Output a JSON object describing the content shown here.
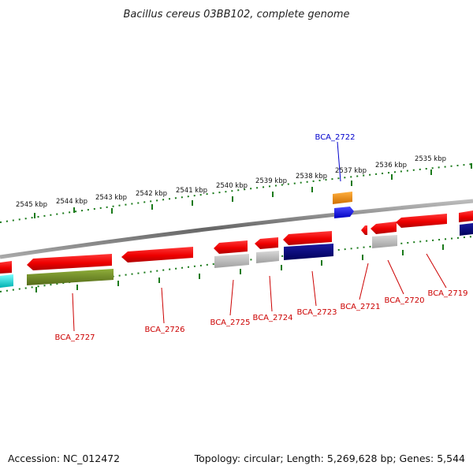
{
  "title": "Bacillus cereus 03BB102, complete genome",
  "footer": {
    "accession": "Accession: NC_012472",
    "summary": "Topology: circular; Length: 5,269,628 bp; Genes: 5,544"
  },
  "colors": {
    "forward_gene": "#ff0000",
    "label_red": "#cc0000",
    "label_blue": "#0000cc",
    "tick_green": "#1a7a1a",
    "backbone": "#888888",
    "gray_feature": "#b5b5b5",
    "navy_feature": "#000080",
    "olive_feature": "#6b8e23",
    "cyan_feature": "#00cccc",
    "orange_feature": "#ff8c00",
    "blue_feature": "#0000ff"
  },
  "scale_labels": [
    "2545 kbp",
    "2544 kbp",
    "2543 kbp",
    "2542 kbp",
    "2541 kbp",
    "2540 kbp",
    "2539 kbp",
    "2538 kbp",
    "2537 kbp",
    "2536 kbp",
    "2535 kbp"
  ],
  "gene_labels": [
    {
      "text": "BCA_2722",
      "color": "blue"
    },
    {
      "text": "BCA_2727",
      "color": "red"
    },
    {
      "text": "BCA_2726",
      "color": "red"
    },
    {
      "text": "BCA_2725",
      "color": "red"
    },
    {
      "text": "BCA_2724",
      "color": "red"
    },
    {
      "text": "BCA_2723",
      "color": "red"
    },
    {
      "text": "BCA_2721",
      "color": "red"
    },
    {
      "text": "BCA_2720",
      "color": "red"
    },
    {
      "text": "BCA_2719",
      "color": "red"
    }
  ]
}
